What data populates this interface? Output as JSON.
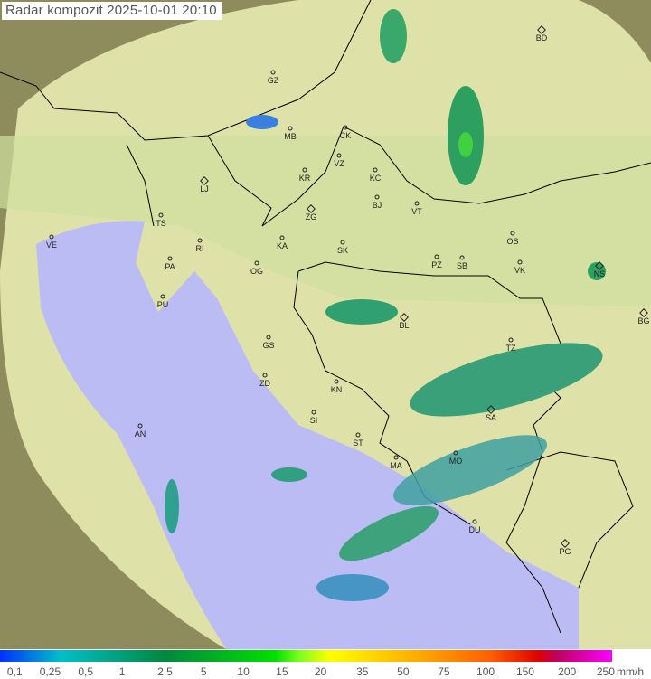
{
  "title": "Radar kompozit  2025-10-01   20:10",
  "colors": {
    "sea": "#bcbcf4",
    "land": "#d8dca0",
    "outside": "#8e8c5c",
    "border": "#000000"
  },
  "cities": [
    {
      "code": "GZ",
      "capital": false
    },
    {
      "code": "MB",
      "capital": false
    },
    {
      "code": "CK",
      "capital": false
    },
    {
      "code": "VZ",
      "capital": false
    },
    {
      "code": "KR",
      "capital": false
    },
    {
      "code": "KC",
      "capital": false
    },
    {
      "code": "LJ",
      "capital": true
    },
    {
      "code": "BJ",
      "capital": false
    },
    {
      "code": "ZG",
      "capital": true
    },
    {
      "code": "VT",
      "capital": false
    },
    {
      "code": "TS",
      "capital": false
    },
    {
      "code": "VE",
      "capital": false
    },
    {
      "code": "KA",
      "capital": false
    },
    {
      "code": "SK",
      "capital": false
    },
    {
      "code": "OS",
      "capital": false
    },
    {
      "code": "RI",
      "capital": false
    },
    {
      "code": "PA",
      "capital": false
    },
    {
      "code": "OG",
      "capital": false
    },
    {
      "code": "PZ",
      "capital": false
    },
    {
      "code": "SB",
      "capital": false
    },
    {
      "code": "VK",
      "capital": false
    },
    {
      "code": "NS",
      "capital": true
    },
    {
      "code": "PU",
      "capital": false
    },
    {
      "code": "BL",
      "capital": true
    },
    {
      "code": "BG",
      "capital": true
    },
    {
      "code": "GS",
      "capital": false
    },
    {
      "code": "TZ",
      "capital": false
    },
    {
      "code": "ZD",
      "capital": false
    },
    {
      "code": "KN",
      "capital": false
    },
    {
      "code": "SA",
      "capital": true
    },
    {
      "code": "SI",
      "capital": false
    },
    {
      "code": "AN",
      "capital": false
    },
    {
      "code": "ST",
      "capital": false
    },
    {
      "code": "MO",
      "capital": false
    },
    {
      "code": "MA",
      "capital": false
    },
    {
      "code": "DU",
      "capital": false
    },
    {
      "code": "PG",
      "capital": true
    },
    {
      "code": "BD",
      "capital": true
    }
  ],
  "legend": {
    "labels": [
      "0,1",
      "0,25",
      "0,5",
      "1",
      "2,5",
      "5",
      "10",
      "15",
      "20",
      "35",
      "50",
      "75",
      "100",
      "150",
      "200",
      "250"
    ],
    "unit": "mm/h"
  }
}
